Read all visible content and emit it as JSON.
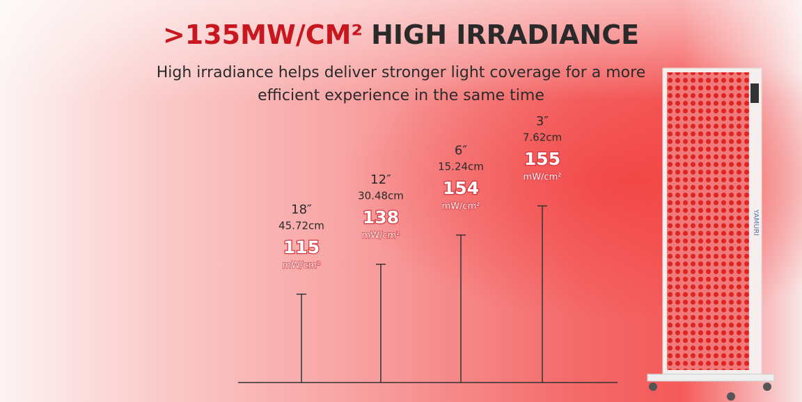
{
  "header": {
    "title_accent": ">135MW/CM²",
    "title_rest": "HIGH IRRADIANCE",
    "subtitle_lines": [
      "High irradiance helps deliver stronger light coverage for a more",
      "efficient experience in the same time"
    ]
  },
  "measurements": [
    {
      "distance": "18″",
      "distance_cm": "45.72cm",
      "irradiance": "115",
      "unit": "mW/cm²"
    },
    {
      "distance": "12″",
      "distance_cm": "30.48cm",
      "irradiance": "138",
      "unit": "mW/cm²"
    },
    {
      "distance": "6″",
      "distance_cm": "15.24cm",
      "irradiance": "154",
      "unit": "mW/cm²"
    },
    {
      "distance": "3″",
      "distance_cm": "7.62cm",
      "irradiance": "155",
      "unit": "mW/cm²"
    }
  ],
  "device": {
    "brand": "YAMURI"
  }
}
